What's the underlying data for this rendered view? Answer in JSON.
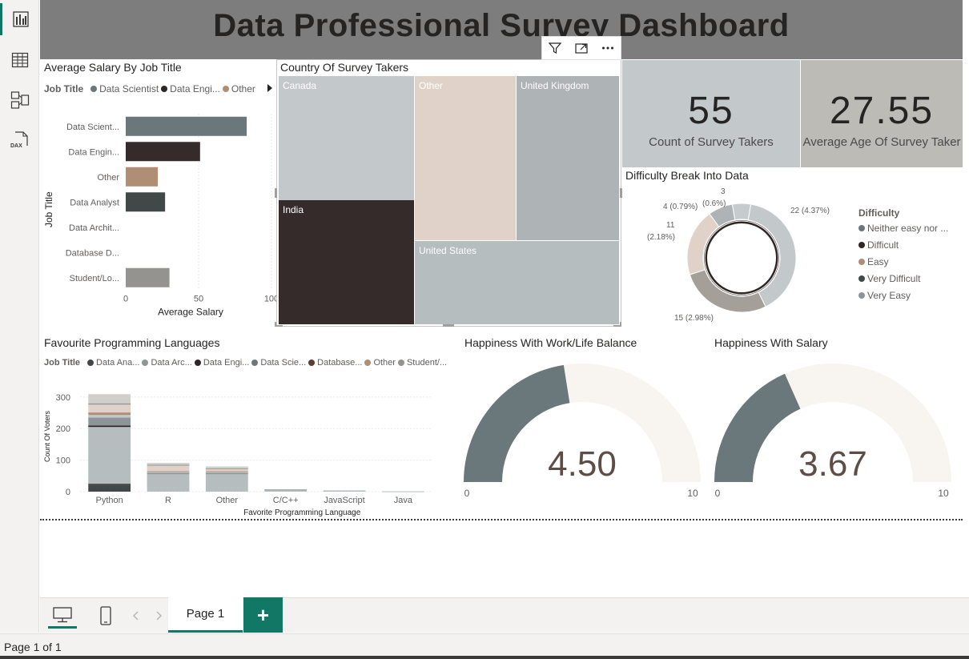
{
  "dashboard": {
    "title": "Data Professional Survey Dashboard"
  },
  "rail": {
    "icons": [
      "report-view-icon",
      "table-view-icon",
      "model-view-icon",
      "dax-query-icon"
    ],
    "dax_label": "DAX"
  },
  "salary_chart": {
    "title": "Average Salary By Job Title",
    "legend_title": "Job Title",
    "legend": [
      {
        "label": "Data Scientist",
        "color": "#6a777b"
      },
      {
        "label": "Data Engi...",
        "color": "#2e2625"
      },
      {
        "label": "Other",
        "color": "#b08e76"
      }
    ],
    "y_axis_title": "Job Title",
    "x_axis_title": "Average Salary"
  },
  "treemap": {
    "title": "Country Of Survey Takers",
    "cells": [
      {
        "label": "Canada",
        "color": "#c3c8cb",
        "text_color": "#ffffff"
      },
      {
        "label": "Other",
        "color": "#e1d2c9",
        "text_color": "#ffffff"
      },
      {
        "label": "United Kingdom",
        "color": "#aeb3b6",
        "text_color": "#ffffff"
      },
      {
        "label": "India",
        "color": "#352b2a",
        "text_color": "#ffffff"
      },
      {
        "label": "United States",
        "color": "#b5bdbf",
        "text_color": "#ffffff"
      }
    ]
  },
  "cards": {
    "count": {
      "value": "55",
      "label": "Count of Survey Takers"
    },
    "age": {
      "value": "27.55",
      "label": "Average Age Of Survey Taker"
    }
  },
  "donut": {
    "title": "Difficulty Break Into Data",
    "legend_title": "Difficulty",
    "legend": [
      {
        "label": "Neither easy nor ...",
        "color": "#6a777b"
      },
      {
        "label": "Difficult",
        "color": "#2e2625"
      },
      {
        "label": "Easy",
        "color": "#b08e76"
      },
      {
        "label": "Very Difficult",
        "color": "#414848"
      },
      {
        "label": "Very Easy",
        "color": "#8c9699"
      }
    ],
    "labels": {
      "l22": "22 (4.37%)",
      "l15": "15 (2.98%)",
      "l11a": "11",
      "l11b": "(2.18%)",
      "l4": "4 (0.79%)",
      "l3a": "3",
      "l3b": "(0.6%)"
    }
  },
  "languages_chart": {
    "title": "Favourite Programming Languages",
    "legend_title": "Job Title",
    "legend": [
      {
        "label": "Data Ana...",
        "color": "#414848"
      },
      {
        "label": "Data Arc...",
        "color": "#8c9699"
      },
      {
        "label": "Data Engi...",
        "color": "#2e2625"
      },
      {
        "label": "Data Scie...",
        "color": "#6a777b"
      },
      {
        "label": "Database...",
        "color": "#5c3d30"
      },
      {
        "label": "Other",
        "color": "#b08e76"
      },
      {
        "label": "Student/...",
        "color": "#959390"
      }
    ],
    "y_axis_title": "Count Of Voters",
    "x_axis_title": "Favorite Programming Language"
  },
  "gauge_worklife": {
    "title": "Happiness With Work/Life Balance",
    "display": "4.50",
    "min_label": "0",
    "max_label": "10"
  },
  "gauge_salary": {
    "title": "Happiness With Salary",
    "display": "3.67",
    "min_label": "0",
    "max_label": "10"
  },
  "tabs": {
    "page_label": "Page 1",
    "add_label": "+"
  },
  "status": {
    "text": "Page 1 of 1"
  },
  "chart_data": [
    {
      "type": "bar",
      "orientation": "horizontal",
      "title": "Average Salary By Job Title",
      "xlabel": "Average Salary",
      "ylabel": "Job Title",
      "categories": [
        "Data Scient...",
        "Data Engin...",
        "Other",
        "Data Analyst",
        "Data Archit...",
        "Database D...",
        "Student/Lo..."
      ],
      "values": [
        83,
        51,
        22,
        27,
        0,
        0,
        30
      ],
      "colors": [
        "#6a777b",
        "#352b2a",
        "#b08e76",
        "#414848",
        "#8c9699",
        "#5c3d30",
        "#959390"
      ],
      "xlim": [
        0,
        100
      ],
      "x_ticks": [
        "0",
        "50",
        "100"
      ],
      "grid": true
    },
    {
      "type": "bar",
      "stacked": true,
      "title": "Favourite Programming Languages",
      "xlabel": "Favorite Programming Language",
      "ylabel": "Count Of Voters",
      "categories": [
        "Python",
        "R",
        "Other",
        "C/C++",
        "JavaScript",
        "Java"
      ],
      "ylim": [
        0,
        330
      ],
      "y_ticks": [
        0,
        100,
        200,
        300
      ],
      "series": [
        {
          "name": "Data Ana...",
          "color": "#414848",
          "values": [
            22,
            0,
            0,
            0,
            0,
            0
          ]
        },
        {
          "name": "Data Arc...",
          "color": "#8c9699",
          "values": [
            0,
            0,
            0,
            0,
            0,
            0
          ]
        },
        {
          "name": "Data Engi...",
          "color": "#2e2625",
          "values": [
            3,
            0,
            0,
            0,
            0,
            0
          ]
        },
        {
          "name": "Data Scie...",
          "color": "#6a777b",
          "values": [
            0,
            0,
            0,
            0,
            0,
            0
          ]
        },
        {
          "name": "Database...",
          "color": "#5c3d30",
          "values": [
            0,
            0,
            0,
            0,
            0,
            0
          ]
        },
        {
          "name": "Other",
          "color": "#b08e76",
          "values": [
            0,
            0,
            0,
            0,
            0,
            0
          ]
        },
        {
          "name": "Student/...",
          "color": "#959390",
          "values": [
            0,
            0,
            0,
            0,
            0,
            0
          ]
        },
        {
          "name": "Data Ana... (2)",
          "color": "#b5bdbf",
          "values": [
            180,
            55,
            55,
            6,
            4,
            1
          ]
        },
        {
          "name": "Data Engi... (2)",
          "color": "#2e2625",
          "values": [
            5,
            0,
            0,
            0,
            0,
            0
          ]
        },
        {
          "name": "Data Scie... (2)",
          "color": "#8c9699",
          "values": [
            25,
            5,
            5,
            1,
            0,
            0
          ]
        },
        {
          "name": "Database... (2)",
          "color": "#c3c8cb",
          "values": [
            8,
            3,
            3,
            0,
            0,
            0
          ]
        },
        {
          "name": "Other (2)",
          "color": "#b08e76",
          "values": [
            8,
            2,
            2,
            0,
            0,
            0
          ]
        },
        {
          "name": "Other (3)",
          "color": "#e1d2c9",
          "values": [
            25,
            18,
            8,
            0,
            0,
            0
          ]
        },
        {
          "name": "Student/... (2)",
          "color": "#959390",
          "values": [
            4,
            2,
            1,
            0,
            0,
            0
          ]
        },
        {
          "name": "Student/... (3)",
          "color": "#d1cfcc",
          "values": [
            29,
            6,
            6,
            0,
            0,
            0
          ]
        }
      ]
    },
    {
      "type": "pie",
      "donut": true,
      "title": "Difficulty Break Into Data",
      "categories": [
        "Neither easy nor ...",
        "Difficult",
        "Easy",
        "Very Difficult",
        "Very Easy"
      ],
      "values": [
        22,
        15,
        11,
        4,
        3
      ],
      "colors": [
        "#c3c8cb",
        "#a59f9a",
        "#e1d2c9",
        "#aeb3b6",
        "#c6ccce"
      ],
      "data_labels": [
        "22 (4.37%)",
        "15 (2.98%)",
        "11 (2.18%)",
        "4 (0.79%)",
        "3 (0.6%)"
      ]
    },
    {
      "type": "gauge",
      "title": "Happiness With Work/Life Balance",
      "value": 4.5,
      "min": 0,
      "max": 10,
      "fill_color": "#6a777b",
      "track_color": "#f8f4ef"
    },
    {
      "type": "gauge",
      "title": "Happiness With Salary",
      "value": 3.67,
      "min": 0,
      "max": 10,
      "fill_color": "#6a777b",
      "track_color": "#f8f4ef"
    },
    {
      "type": "treemap",
      "title": "Country Of Survey Takers",
      "categories": [
        "India",
        "Canada",
        "United States",
        "Other",
        "United Kingdom"
      ]
    }
  ]
}
